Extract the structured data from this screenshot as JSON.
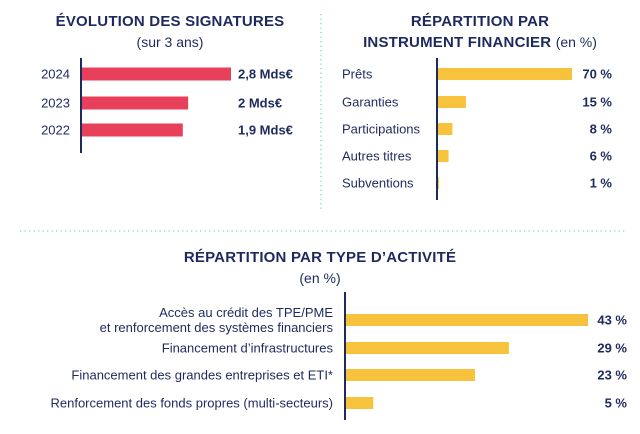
{
  "colors": {
    "navy": "#1e2a5e",
    "red": "#e8405a",
    "yellow": "#f7c23c",
    "divider": "#7fd3c9"
  },
  "panel1": {
    "title": "ÉVOLUTION DES SIGNATURES",
    "subtitle": "(sur 3 ans)"
  },
  "panel2": {
    "title_line1": "RÉPARTITION PAR",
    "title_line2": "INSTRUMENT FINANCIER",
    "title_unit": "(en %)"
  },
  "panel3": {
    "title": "RÉPARTITION PAR TYPE D’ACTIVITÉ",
    "subtitle": "(en %)"
  },
  "chart_data": [
    {
      "type": "bar",
      "orientation": "horizontal",
      "title": "ÉVOLUTION DES SIGNATURES",
      "subtitle": "(sur 3 ans)",
      "categories": [
        "2024",
        "2023",
        "2022"
      ],
      "values": [
        2.8,
        2.0,
        1.9
      ],
      "value_labels": [
        "2,8 Mds€",
        "2 Mds€",
        "1,9 Mds€"
      ],
      "color": "#e8405a",
      "xlim": [
        0,
        2.8
      ]
    },
    {
      "type": "bar",
      "orientation": "horizontal",
      "title": "RÉPARTITION PAR INSTRUMENT FINANCIER",
      "subtitle": "(en %)",
      "categories": [
        "Prêts",
        "Garanties",
        "Participations",
        "Autres titres",
        "Subventions"
      ],
      "values": [
        70,
        15,
        8,
        6,
        1
      ],
      "value_labels": [
        "70 %",
        "15 %",
        "8 %",
        "6 %",
        "1 %"
      ],
      "color": "#f7c23c",
      "xlim": [
        0,
        70
      ]
    },
    {
      "type": "bar",
      "orientation": "horizontal",
      "title": "RÉPARTITION PAR TYPE D’ACTIVITÉ",
      "subtitle": "(en %)",
      "categories": [
        [
          "Accès au crédit des TPE/PME",
          "et renforcement des systèmes financiers"
        ],
        [
          "Financement d’infrastructures"
        ],
        [
          "Financement des grandes entreprises et ETI*"
        ],
        [
          "Renforcement des fonds propres (multi-secteurs)"
        ]
      ],
      "values": [
        43,
        29,
        23,
        5
      ],
      "value_labels": [
        "43 %",
        "29 %",
        "23 %",
        "5 %"
      ],
      "color": "#f7c23c",
      "xlim": [
        0,
        43
      ]
    }
  ]
}
